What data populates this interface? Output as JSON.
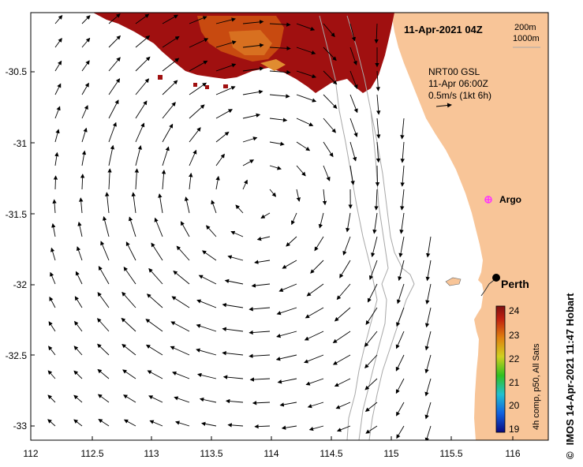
{
  "map": {
    "date_label": "11-Apr-2021 04Z",
    "contour_labels": [
      "200m",
      "1000m"
    ],
    "current_source": "NRT00 GSL",
    "current_time": "11-Apr 06:00Z",
    "scale_label": "0.5m/s (1kt 6h)",
    "x_ticks": [
      "112",
      "112.5",
      "113",
      "113.5",
      "114",
      "114.5",
      "115",
      "115.5",
      "116"
    ],
    "y_ticks": [
      "-30.5",
      "-31",
      "-31.5",
      "-32",
      "-32.5",
      "-33"
    ],
    "places": [
      {
        "name": "Argo",
        "lon": 115.75,
        "lat": -31.4
      },
      {
        "name": "Perth",
        "lon": 115.86,
        "lat": -31.95
      }
    ],
    "colors": {
      "land": "#f8c598",
      "sst_hot": "#a01010",
      "sst_warm": "#c84a10",
      "arrow": "#000000",
      "isobath": "#a8a8a8",
      "argo": "#ff33ff"
    }
  },
  "colorbar": {
    "ticks": [
      "24",
      "23",
      "22",
      "21",
      "20",
      "19"
    ],
    "caption": "4h comp, p50, All Sats",
    "min": 19,
    "max": 24
  },
  "credit": "IMOS 14-Apr-2021 11:47 Hobart",
  "copyright_symbol": "©"
}
